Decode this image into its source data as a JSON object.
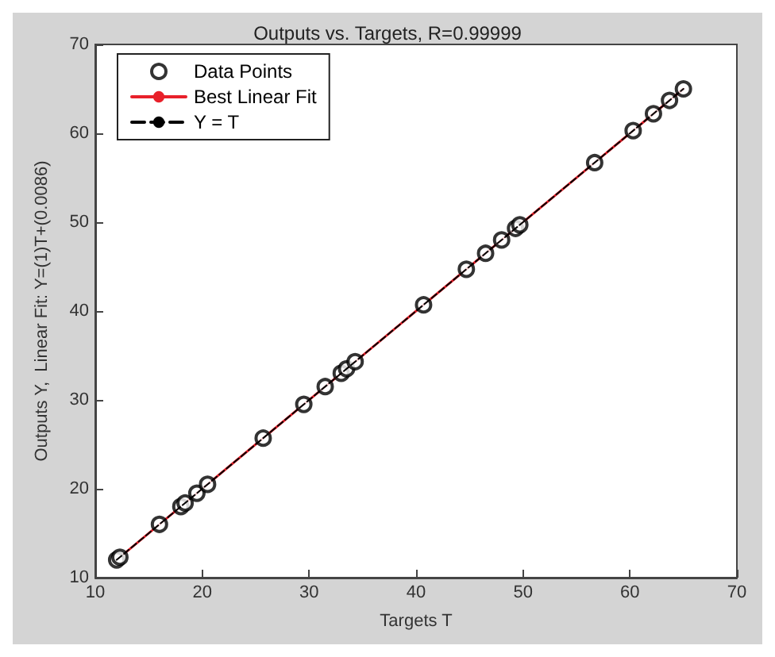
{
  "chart_data": {
    "type": "scatter",
    "title": "Outputs vs. Targets, R=0.99999",
    "xlabel": "Targets T",
    "ylabel": "Outputs Y,  Linear Fit: Y=(1)T+(0.0086)",
    "xlim": [
      10,
      70
    ],
    "ylim": [
      10,
      70
    ],
    "xticks": [
      10,
      20,
      30,
      40,
      50,
      60,
      70
    ],
    "yticks": [
      10,
      20,
      30,
      40,
      50,
      60,
      70
    ],
    "grid": false,
    "legend": "top left",
    "series": [
      {
        "name": "Data Points",
        "color": "#000000",
        "marker": "circle",
        "x": [
          12,
          12.3,
          16,
          18,
          18.4,
          19.5,
          20.5,
          25.7,
          29.5,
          31.5,
          33,
          33.5,
          34.3,
          40.7,
          44.7,
          46.5,
          48,
          49.3,
          49.7,
          56.7,
          60.3,
          62.2,
          63.7,
          65
        ],
        "values": [
          12,
          12.3,
          16,
          18,
          18.4,
          19.5,
          20.5,
          25.7,
          29.5,
          31.5,
          33,
          33.5,
          34.3,
          40.7,
          44.7,
          46.5,
          48,
          49.3,
          49.7,
          56.7,
          60.3,
          62.2,
          63.7,
          65
        ]
      },
      {
        "name": "Best Linear Fit",
        "type": "line",
        "color": "#e8202a",
        "line_style": "solid",
        "marker": "none",
        "x": [
          12,
          65
        ],
        "values": [
          12,
          65
        ]
      },
      {
        "name": "Y = T",
        "type": "line",
        "color": "#000000",
        "line_style": "dashed",
        "marker": "none",
        "x": [
          12,
          65
        ],
        "values": [
          12,
          65
        ]
      }
    ]
  }
}
